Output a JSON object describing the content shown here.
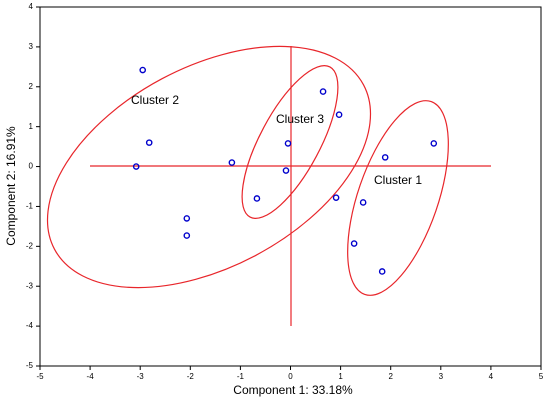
{
  "chart_data": {
    "type": "scatter",
    "xlabel": "Component 1: 33.18%",
    "ylabel": "Component 2: 16.91%",
    "annotations": [
      "Cluster 2",
      "Cluster 3",
      "Cluster 1"
    ],
    "x": [
      -2.95,
      -2.82,
      -3.08,
      -1.17,
      -2.07,
      -2.07,
      -0.67,
      -0.09,
      -0.05,
      0.65,
      0.97,
      0.91,
      1.45,
      1.27,
      1.83,
      1.89,
      2.86
    ],
    "values": [
      2.42,
      0.6,
      0.0,
      0.1,
      -1.3,
      -1.73,
      -0.8,
      -0.1,
      0.58,
      1.88,
      1.3,
      -0.78,
      -0.9,
      -1.93,
      -2.63,
      0.23,
      0.58
    ],
    "color": "#0000cc",
    "xlim": [
      -5,
      5
    ],
    "xticks": [
      -5,
      -4,
      -3,
      -2,
      -1,
      0,
      1,
      2,
      3,
      4,
      5
    ],
    "ylim": [
      -5,
      4
    ],
    "yticks": [
      -5,
      -4,
      -3,
      -2,
      -1,
      0,
      1,
      2,
      3,
      4
    ]
  }
}
